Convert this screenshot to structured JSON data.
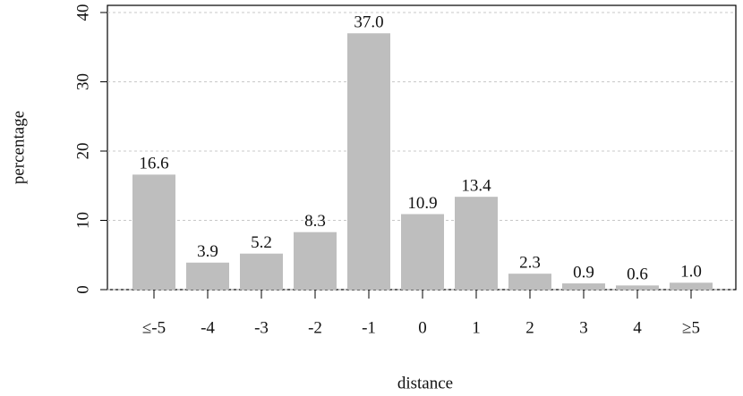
{
  "chart_data": {
    "type": "bar",
    "x_label": "distance",
    "y_label": "percentage",
    "categories": [
      "≤-5",
      "-4",
      "-3",
      "-2",
      "-1",
      "0",
      "1",
      "2",
      "3",
      "4",
      "≥5"
    ],
    "values": [
      16.6,
      3.9,
      5.2,
      8.3,
      37.0,
      10.9,
      13.4,
      2.3,
      0.9,
      0.6,
      1.0
    ],
    "value_labels": [
      "16.6",
      "3.9",
      "5.2",
      "8.3",
      "37.0",
      "10.9",
      "13.4",
      "2.3",
      "0.9",
      "0.6",
      "1.0"
    ],
    "color": "#bebebe",
    "ylim": [
      0,
      40
    ],
    "yticks": [
      0,
      10,
      20,
      30,
      40
    ],
    "grid": true
  }
}
